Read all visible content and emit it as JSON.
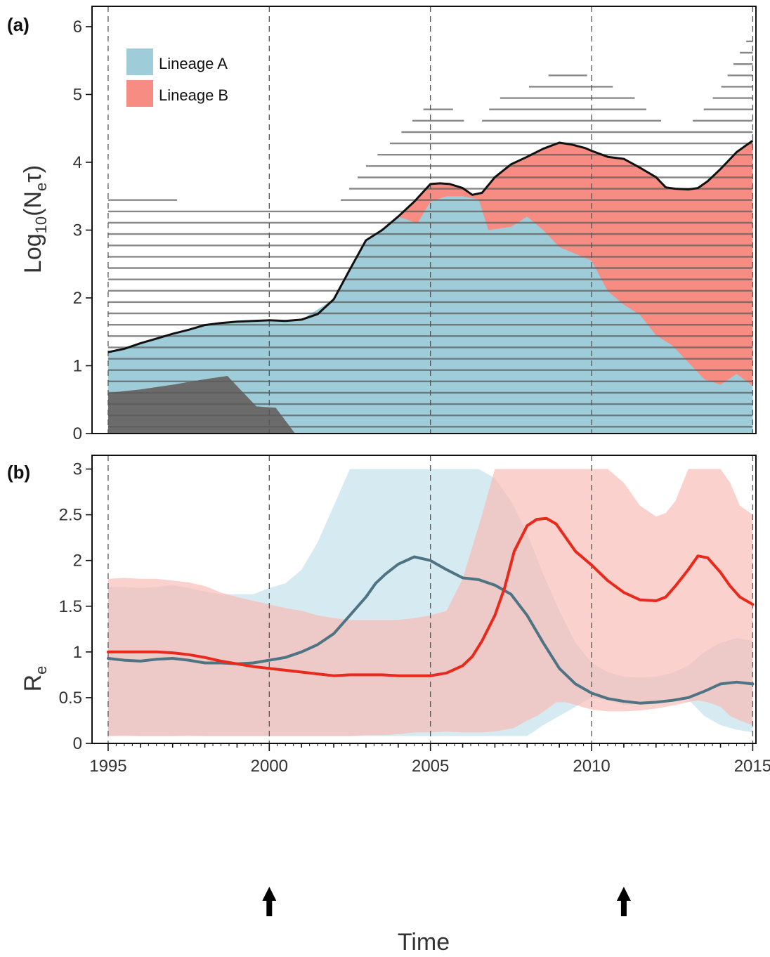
{
  "panel_a_label": "(a)",
  "panel_b_label": "(b)",
  "xlabel": "Time",
  "chart_data": [
    {
      "type": "area",
      "panel": "(a)",
      "ylabel_main": "Log",
      "ylabel_sub": "10",
      "ylabel_rest": "(N",
      "ylabel_sub2": "e",
      "ylabel_tail": "τ)",
      "xlim": [
        1994.5,
        2015.1
      ],
      "ylim": [
        0,
        6.3
      ],
      "xticks": [
        1995,
        2000,
        2005,
        2010,
        2015
      ],
      "yticks": [
        0,
        1,
        2,
        3,
        4,
        5,
        6
      ],
      "dashed_vlines": [
        1995,
        2000,
        2005,
        2010,
        2015
      ],
      "legend": [
        {
          "name": "Lineage A",
          "color": "#9ECCD8"
        },
        {
          "name": "Lineage B",
          "color": "#F78C82"
        }
      ],
      "total_line": {
        "x": [
          1995,
          1995.5,
          1996,
          1996.5,
          1997,
          1997.5,
          1998,
          1998.5,
          1999,
          1999.5,
          2000,
          2000.5,
          2001,
          2001.5,
          2002,
          2002.5,
          2003,
          2003.5,
          2004,
          2004.5,
          2005,
          2005.3,
          2005.6,
          2006,
          2006.3,
          2006.6,
          2007,
          2007.5,
          2008,
          2008.5,
          2009,
          2009.4,
          2009.8,
          2010,
          2010.5,
          2011,
          2011.5,
          2012,
          2012.3,
          2012.6,
          2013,
          2013.3,
          2013.6,
          2014,
          2014.5,
          2015
        ],
        "y": [
          1.2,
          1.25,
          1.33,
          1.4,
          1.47,
          1.53,
          1.6,
          1.63,
          1.65,
          1.66,
          1.67,
          1.66,
          1.68,
          1.76,
          1.98,
          2.42,
          2.85,
          3.0,
          3.2,
          3.42,
          3.68,
          3.69,
          3.68,
          3.62,
          3.52,
          3.55,
          3.78,
          3.97,
          4.08,
          4.2,
          4.29,
          4.26,
          4.21,
          4.17,
          4.08,
          4.05,
          3.92,
          3.78,
          3.63,
          3.61,
          3.6,
          3.62,
          3.72,
          3.9,
          4.15,
          4.32
        ]
      },
      "lineage_A": {
        "x": [
          1995,
          1996,
          1997,
          1998,
          1999,
          2000,
          2001,
          2002,
          2003,
          2004,
          2004.6,
          2005,
          2005.5,
          2006,
          2006.5,
          2006.8,
          2007.5,
          2008,
          2008.5,
          2009,
          2009.5,
          2010,
          2010.5,
          2011,
          2011.5,
          2012,
          2012.5,
          2013,
          2013.5,
          2014,
          2014.5,
          2015
        ],
        "y": [
          1.2,
          1.33,
          1.47,
          1.6,
          1.65,
          1.67,
          1.68,
          1.98,
          2.85,
          3.2,
          3.1,
          3.42,
          3.5,
          3.5,
          3.45,
          3.0,
          3.05,
          3.2,
          3.0,
          2.75,
          2.65,
          2.55,
          2.1,
          1.9,
          1.75,
          1.45,
          1.3,
          1.05,
          0.8,
          0.72,
          0.88,
          0.7
        ]
      },
      "background_lineage": {
        "x": [
          1995,
          1996,
          1997,
          1998,
          1998.7,
          1999.2,
          1999.6,
          2000.2,
          2000.8
        ],
        "y": [
          0.6,
          0.65,
          0.72,
          0.8,
          0.85,
          0.6,
          0.4,
          0.38,
          0.0
        ]
      },
      "hpd_band": {
        "x": [
          1995,
          1996,
          1997,
          1998,
          1999,
          2000,
          2001,
          2002,
          2003,
          2004,
          2005,
          2005.5,
          2006,
          2006.5,
          2007,
          2008,
          2009,
          2009.5,
          2010,
          2010.5,
          2011,
          2011.5,
          2012,
          2012.5,
          2013,
          2013.5,
          2014,
          2014.5,
          2015
        ],
        "lower": [
          0.0,
          0.0,
          0.0,
          0.0,
          0.0,
          0.0,
          0.0,
          0.0,
          0.0,
          0.0,
          0.0,
          0.0,
          0.0,
          0.0,
          0.0,
          0.0,
          0.0,
          0.0,
          0.0,
          0.0,
          0.0,
          0.0,
          0.0,
          0.0,
          0.0,
          0.0,
          0.0,
          0.0,
          0.0
        ],
        "upper": [
          3.6,
          3.45,
          3.45,
          3.4,
          3.3,
          3.3,
          3.3,
          3.3,
          3.95,
          4.4,
          4.9,
          4.9,
          4.62,
          4.55,
          4.92,
          5.1,
          5.38,
          5.38,
          5.25,
          5.15,
          5.05,
          4.9,
          4.62,
          4.6,
          4.55,
          4.8,
          5.1,
          5.55,
          5.95
        ]
      }
    },
    {
      "type": "line",
      "panel": "(b)",
      "ylabel_main": "R",
      "ylabel_sub": "e",
      "xlim": [
        1994.5,
        2015.1
      ],
      "ylim": [
        0,
        3.15
      ],
      "xticks": [
        1995,
        2000,
        2005,
        2010,
        2015
      ],
      "yticks": [
        0,
        0.5,
        1,
        1.5,
        2,
        2.5,
        3
      ],
      "ytick_labels": [
        "0",
        "0.5",
        "1",
        "1.5",
        "2",
        "2.5",
        "3"
      ],
      "dashed_vlines": [
        1995,
        2000,
        2005,
        2010,
        2015
      ],
      "arrows_at": [
        2000,
        2011
      ],
      "series": [
        {
          "color": "#4E7383",
          "band_color": "#ADD8E3",
          "x": [
            1995,
            1995.5,
            1996,
            1996.5,
            1997,
            1997.5,
            1998,
            1998.5,
            1999,
            1999.5,
            2000,
            2000.5,
            2001,
            2001.5,
            2002,
            2002.5,
            2003,
            2003.3,
            2003.6,
            2004,
            2004.5,
            2005,
            2005.5,
            2006,
            2006.5,
            2007,
            2007.5,
            2008,
            2008.5,
            2009,
            2009.5,
            2010,
            2010.5,
            2011,
            2011.5,
            2012,
            2012.5,
            2013,
            2013.5,
            2014,
            2014.5,
            2015
          ],
          "y": [
            0.93,
            0.91,
            0.9,
            0.92,
            0.93,
            0.91,
            0.88,
            0.88,
            0.87,
            0.88,
            0.91,
            0.94,
            1.0,
            1.08,
            1.2,
            1.4,
            1.6,
            1.75,
            1.85,
            1.96,
            2.04,
            2.0,
            1.9,
            1.81,
            1.79,
            1.73,
            1.63,
            1.4,
            1.1,
            0.82,
            0.65,
            0.55,
            0.49,
            0.46,
            0.44,
            0.45,
            0.47,
            0.5,
            0.57,
            0.65,
            0.67,
            0.65
          ],
          "lower": [
            0.08,
            0.09,
            0.08,
            0.08,
            0.08,
            0.09,
            0.08,
            0.08,
            0.08,
            0.08,
            0.08,
            0.08,
            0.08,
            0.08,
            0.08,
            0.08,
            0.08,
            0.08,
            0.08,
            0.08,
            0.08,
            0.08,
            0.08,
            0.08,
            0.08,
            0.08,
            0.08,
            0.08,
            0.2,
            0.3,
            0.4,
            0.5,
            0.47,
            0.42,
            0.43,
            0.45,
            0.47,
            0.48,
            0.3,
            0.2,
            0.15,
            0.12
          ],
          "upper": [
            1.71,
            1.71,
            1.7,
            1.71,
            1.73,
            1.7,
            1.66,
            1.63,
            1.63,
            1.63,
            1.7,
            1.75,
            1.9,
            2.2,
            2.6,
            3.0,
            3.0,
            3.0,
            3.0,
            3.0,
            3.0,
            3.0,
            3.0,
            3.0,
            3.0,
            2.9,
            2.65,
            2.3,
            1.85,
            1.45,
            1.1,
            0.88,
            0.78,
            0.73,
            0.72,
            0.73,
            0.77,
            0.85,
            1.0,
            1.1,
            1.15,
            1.12
          ]
        },
        {
          "color": "#E8291B",
          "band_color": "#F9B8B2",
          "x": [
            1995,
            1995.5,
            1996,
            1996.5,
            1997,
            1997.5,
            1998,
            1998.5,
            1999,
            1999.5,
            2000,
            2000.5,
            2001,
            2001.5,
            2002,
            2002.5,
            2003,
            2003.5,
            2004,
            2004.5,
            2005,
            2005.5,
            2006,
            2006.3,
            2006.6,
            2007,
            2007.3,
            2007.6,
            2008,
            2008.3,
            2008.6,
            2008.9,
            2009.2,
            2009.5,
            2010,
            2010.5,
            2011,
            2011.5,
            2012,
            2012.3,
            2012.6,
            2013,
            2013.3,
            2013.6,
            2014,
            2014.3,
            2014.6,
            2015
          ],
          "y": [
            1.0,
            1.0,
            1.0,
            1.0,
            0.99,
            0.97,
            0.94,
            0.9,
            0.87,
            0.84,
            0.82,
            0.8,
            0.78,
            0.76,
            0.74,
            0.75,
            0.75,
            0.75,
            0.74,
            0.74,
            0.74,
            0.77,
            0.85,
            0.95,
            1.12,
            1.4,
            1.7,
            2.1,
            2.38,
            2.45,
            2.46,
            2.4,
            2.25,
            2.1,
            1.95,
            1.78,
            1.65,
            1.57,
            1.56,
            1.6,
            1.72,
            1.9,
            2.05,
            2.03,
            1.87,
            1.72,
            1.6,
            1.52
          ],
          "lower": [
            0.08,
            0.08,
            0.08,
            0.08,
            0.08,
            0.08,
            0.08,
            0.08,
            0.08,
            0.08,
            0.08,
            0.08,
            0.08,
            0.08,
            0.08,
            0.08,
            0.09,
            0.09,
            0.1,
            0.12,
            0.12,
            0.13,
            0.12,
            0.12,
            0.12,
            0.13,
            0.15,
            0.17,
            0.25,
            0.3,
            0.37,
            0.45,
            0.45,
            0.42,
            0.37,
            0.35,
            0.35,
            0.36,
            0.38,
            0.4,
            0.42,
            0.45,
            0.47,
            0.45,
            0.4,
            0.3,
            0.25,
            0.2
          ],
          "upper": [
            1.8,
            1.81,
            1.8,
            1.8,
            1.78,
            1.76,
            1.72,
            1.65,
            1.6,
            1.56,
            1.52,
            1.48,
            1.45,
            1.4,
            1.37,
            1.35,
            1.35,
            1.35,
            1.35,
            1.37,
            1.4,
            1.45,
            1.8,
            2.15,
            2.5,
            3.0,
            3.0,
            3.0,
            3.0,
            3.0,
            3.0,
            3.0,
            3.0,
            3.0,
            3.0,
            3.0,
            2.85,
            2.6,
            2.48,
            2.52,
            2.65,
            3.0,
            3.0,
            3.0,
            3.0,
            2.85,
            2.6,
            2.5
          ]
        }
      ]
    }
  ]
}
